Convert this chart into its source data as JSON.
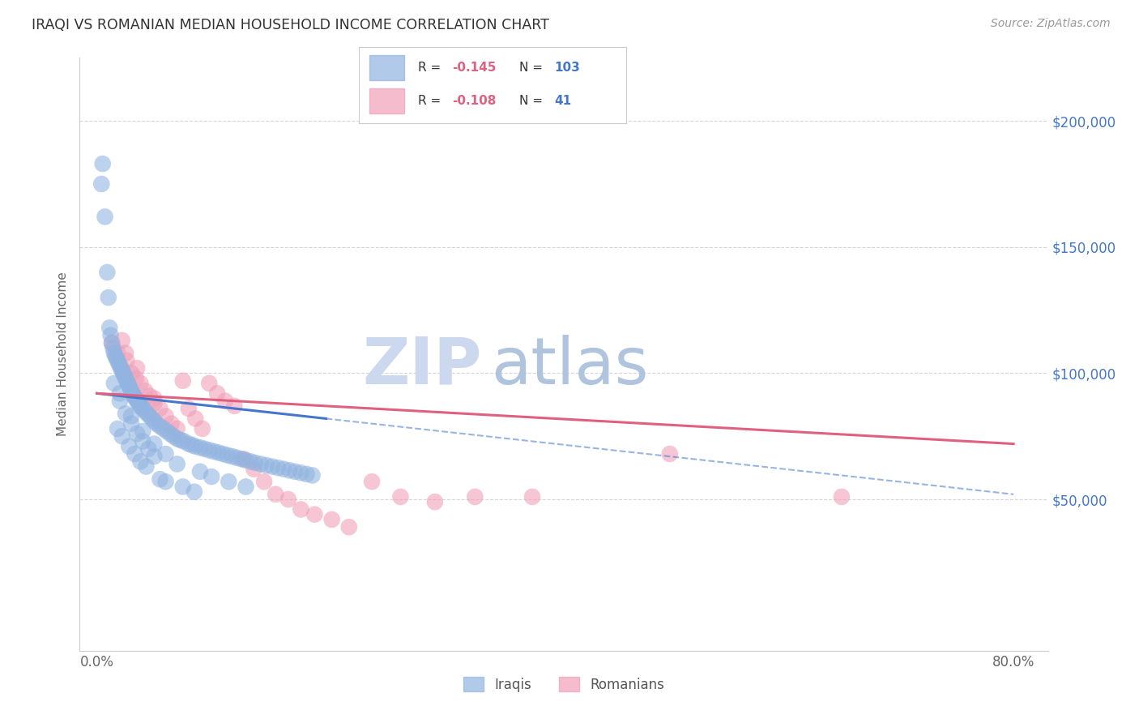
{
  "title": "IRAQI VS ROMANIAN MEDIAN HOUSEHOLD INCOME CORRELATION CHART",
  "source": "Source: ZipAtlas.com",
  "ylabel_label": "Median Household Income",
  "xlim": [
    -1.5,
    83
  ],
  "ylim": [
    -10000,
    225000
  ],
  "legend_r_iraqi": "-0.145",
  "legend_n_iraqi": "103",
  "legend_r_romanian": "-0.108",
  "legend_n_romanian": "41",
  "legend_label_iraqi": "Iraqis",
  "legend_label_romanian": "Romanians",
  "watermark_zip_color": "#ccd8ee",
  "watermark_atlas_color": "#b0c4de",
  "background_color": "#ffffff",
  "grid_color": "#cccccc",
  "iraqi_color": "#92b4e0",
  "romanian_color": "#f0a0b8",
  "iraqi_line_color": "#4477cc",
  "romanian_line_color": "#e06080",
  "title_color": "#333333",
  "source_color": "#999999",
  "right_tick_color": "#4477cc",
  "iraqi_points_x": [
    0.4,
    0.5,
    0.7,
    0.9,
    1.0,
    1.1,
    1.2,
    1.3,
    1.4,
    1.5,
    1.6,
    1.7,
    1.8,
    1.9,
    2.0,
    2.1,
    2.2,
    2.3,
    2.4,
    2.5,
    2.6,
    2.7,
    2.8,
    2.9,
    3.0,
    3.1,
    3.2,
    3.3,
    3.4,
    3.5,
    3.6,
    3.7,
    3.8,
    3.9,
    4.0,
    4.2,
    4.4,
    4.6,
    4.8,
    5.0,
    5.2,
    5.5,
    5.8,
    6.1,
    6.4,
    6.7,
    7.0,
    7.3,
    7.6,
    8.0,
    8.3,
    8.6,
    9.0,
    9.4,
    9.8,
    10.2,
    10.6,
    11.0,
    11.4,
    11.8,
    12.2,
    12.6,
    13.0,
    13.4,
    13.8,
    14.3,
    14.8,
    15.3,
    15.8,
    16.3,
    16.8,
    17.3,
    17.8,
    18.3,
    18.8,
    1.5,
    2.0,
    2.5,
    3.0,
    3.5,
    4.0,
    4.5,
    5.0,
    1.8,
    2.2,
    2.8,
    3.3,
    3.8,
    4.3,
    5.5,
    6.0,
    7.5,
    8.5,
    2.0,
    3.0,
    4.0,
    5.0,
    6.0,
    7.0,
    9.0,
    10.0,
    11.5,
    13.0
  ],
  "iraqi_points_y": [
    175000,
    183000,
    162000,
    140000,
    130000,
    118000,
    115000,
    112000,
    110000,
    108000,
    107000,
    106000,
    105000,
    104000,
    103000,
    102000,
    101000,
    100000,
    99000,
    98000,
    97000,
    96000,
    95000,
    94000,
    93000,
    92000,
    91000,
    90500,
    90000,
    89000,
    88500,
    88000,
    87000,
    86500,
    86000,
    85000,
    84000,
    83000,
    82000,
    81000,
    80000,
    79000,
    78000,
    77000,
    76000,
    75000,
    74000,
    73500,
    73000,
    72000,
    71500,
    71000,
    70500,
    70000,
    69500,
    69000,
    68500,
    68000,
    67500,
    67000,
    66500,
    66000,
    65500,
    65000,
    64500,
    64000,
    63500,
    63000,
    62500,
    62000,
    61500,
    61000,
    60500,
    60000,
    59500,
    96000,
    89000,
    84000,
    80000,
    76000,
    73000,
    70000,
    67000,
    78000,
    75000,
    71000,
    68000,
    65000,
    63000,
    58000,
    57000,
    55000,
    53000,
    92000,
    83000,
    77000,
    72000,
    68000,
    64000,
    61000,
    59000,
    57000,
    55000
  ],
  "romanian_points_x": [
    1.3,
    1.8,
    2.2,
    2.6,
    3.0,
    3.4,
    3.8,
    4.2,
    4.6,
    5.0,
    5.5,
    6.0,
    6.5,
    7.0,
    7.5,
    8.0,
    8.6,
    9.2,
    9.8,
    10.5,
    11.2,
    12.0,
    12.8,
    13.7,
    14.6,
    15.6,
    16.7,
    17.8,
    19.0,
    20.5,
    22.0,
    24.0,
    26.5,
    29.5,
    33.0,
    38.0,
    50.0,
    65.0,
    2.5,
    3.5,
    5.0
  ],
  "romanian_points_y": [
    112000,
    108000,
    113000,
    105000,
    100000,
    98000,
    96000,
    93000,
    91000,
    88000,
    86000,
    83000,
    80000,
    78000,
    97000,
    86000,
    82000,
    78000,
    96000,
    92000,
    89000,
    87000,
    66000,
    62000,
    57000,
    52000,
    50000,
    46000,
    44000,
    42000,
    39000,
    57000,
    51000,
    49000,
    51000,
    51000,
    68000,
    51000,
    108000,
    102000,
    90000
  ],
  "iraqi_line_x0": 0.0,
  "iraqi_line_x_solid_end": 20.0,
  "iraqi_line_x_dash_end": 80.0,
  "iraqi_line_y_at_0": 92000,
  "iraqi_line_y_at_20": 82000,
  "iraqi_line_y_at_80": 52000,
  "romanian_line_x0": 0.0,
  "romanian_line_x_end": 80.0,
  "romanian_line_y_at_0": 92000,
  "romanian_line_y_at_80": 72000
}
